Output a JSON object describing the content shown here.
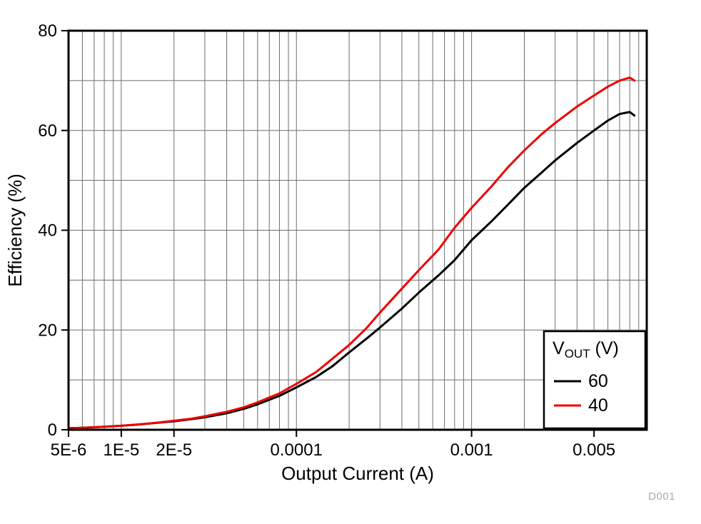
{
  "figure": {
    "watermark": "D001",
    "colors": {
      "axis": "#000000",
      "grid": "#6e6e6e",
      "background": "#ffffff",
      "watermark": "#aaaaaa"
    }
  },
  "chart_data": {
    "type": "line",
    "title": "",
    "xlabel": "Output Current (A)",
    "ylabel": "Efficiency (%)",
    "x_scale": "log",
    "xlim": [
      5e-06,
      0.01
    ],
    "ylim": [
      0,
      80
    ],
    "grid": true,
    "y_grid_step": 10,
    "x_ticks": [
      {
        "value": 5e-06,
        "label": "5E-6"
      },
      {
        "value": 1e-05,
        "label": "1E-5"
      },
      {
        "value": 2e-05,
        "label": "2E-5"
      },
      {
        "value": 0.0001,
        "label": "0.0001"
      },
      {
        "value": 0.001,
        "label": "0.001"
      },
      {
        "value": 0.005,
        "label": "0.005"
      }
    ],
    "y_ticks": [
      {
        "value": 0,
        "label": "0"
      },
      {
        "value": 20,
        "label": "20"
      },
      {
        "value": 40,
        "label": "40"
      },
      {
        "value": 60,
        "label": "60"
      },
      {
        "value": 80,
        "label": "80"
      }
    ],
    "legend": {
      "position": "bottom-right",
      "title_main": "V",
      "title_sub": "OUT",
      "title_suffix": " (V)"
    },
    "x": [
      5e-06,
      6e-06,
      7e-06,
      8e-06,
      1e-05,
      1.2e-05,
      1.5e-05,
      2e-05,
      2.5e-05,
      3e-05,
      4e-05,
      5e-05,
      6e-05,
      8e-05,
      0.0001,
      0.00013,
      0.00016,
      0.0002,
      0.00025,
      0.0003,
      0.0004,
      0.0005,
      0.00065,
      0.0008,
      0.001,
      0.0013,
      0.0016,
      0.002,
      0.0025,
      0.003,
      0.004,
      0.005,
      0.006,
      0.007,
      0.008,
      0.0085
    ],
    "series": [
      {
        "name": "60",
        "color": "#000000",
        "values": [
          0.3,
          0.4,
          0.5,
          0.6,
          0.8,
          1.0,
          1.3,
          1.7,
          2.1,
          2.5,
          3.3,
          4.2,
          5.1,
          6.8,
          8.5,
          10.6,
          12.7,
          15.5,
          18.2,
          20.5,
          24.3,
          27.5,
          31.0,
          34.0,
          38.0,
          41.8,
          45.0,
          48.5,
          51.5,
          54.0,
          57.5,
          60.0,
          62.0,
          63.3,
          63.7,
          63.0
        ]
      },
      {
        "name": "40",
        "color": "#ee0000",
        "values": [
          0.3,
          0.4,
          0.5,
          0.6,
          0.8,
          1.0,
          1.3,
          1.8,
          2.2,
          2.7,
          3.6,
          4.5,
          5.5,
          7.3,
          9.2,
          11.6,
          14.2,
          17.0,
          20.3,
          23.5,
          28.3,
          32.0,
          36.2,
          40.5,
          44.5,
          48.8,
          52.5,
          56.0,
          59.2,
          61.5,
          64.8,
          67.0,
          68.8,
          70.0,
          70.6,
          70.0
        ]
      }
    ]
  }
}
